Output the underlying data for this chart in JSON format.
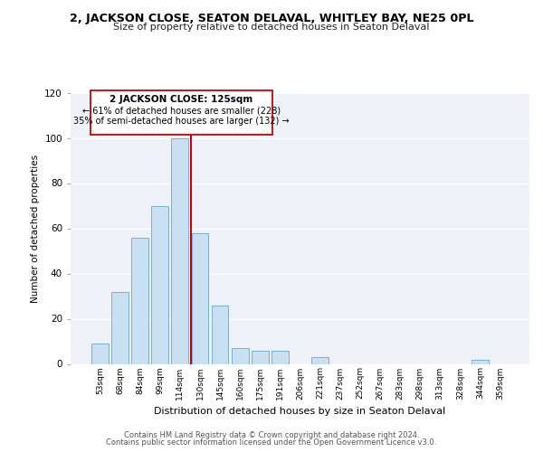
{
  "title_line1": "2, JACKSON CLOSE, SEATON DELAVAL, WHITLEY BAY, NE25 0PL",
  "title_line2": "Size of property relative to detached houses in Seaton Delaval",
  "xlabel": "Distribution of detached houses by size in Seaton Delaval",
  "ylabel": "Number of detached properties",
  "footer_line1": "Contains HM Land Registry data © Crown copyright and database right 2024.",
  "footer_line2": "Contains public sector information licensed under the Open Government Licence v3.0.",
  "bar_labels": [
    "53sqm",
    "68sqm",
    "84sqm",
    "99sqm",
    "114sqm",
    "130sqm",
    "145sqm",
    "160sqm",
    "175sqm",
    "191sqm",
    "206sqm",
    "221sqm",
    "237sqm",
    "252sqm",
    "267sqm",
    "283sqm",
    "298sqm",
    "313sqm",
    "328sqm",
    "344sqm",
    "359sqm"
  ],
  "bar_values": [
    9,
    32,
    56,
    70,
    100,
    58,
    26,
    7,
    6,
    6,
    0,
    3,
    0,
    0,
    0,
    0,
    0,
    0,
    0,
    2,
    0
  ],
  "bar_color": "#c9dff2",
  "bar_edge_color": "#7ab0d4",
  "marker_label": "2 JACKSON CLOSE: 125sqm",
  "marker_line_color": "#cc0000",
  "annotation_line1": "← 61% of detached houses are smaller (228)",
  "annotation_line2": "35% of semi-detached houses are larger (132) →",
  "annotation_box_color": "white",
  "annotation_box_edge": "#cc0000",
  "ylim": [
    0,
    120
  ],
  "yticks": [
    0,
    20,
    40,
    60,
    80,
    100,
    120
  ],
  "background_color": "#eef2f8",
  "grid_color": "white"
}
